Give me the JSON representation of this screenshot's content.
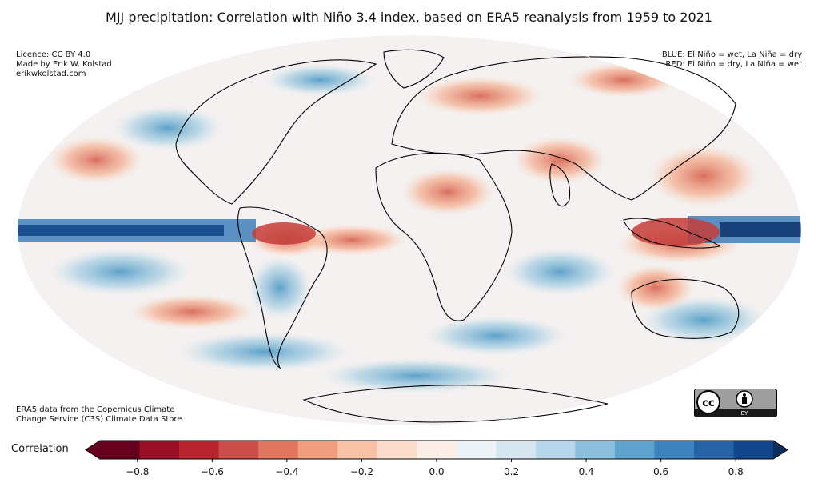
{
  "title": "MJJ precipitation: Correlation with Niño 3.4 index, based on ERA5 reanalysis from 1959 to 2021",
  "credits": {
    "line1": "Licence: CC BY 4.0",
    "line2": "Made by Erik W. Kolstad",
    "line3": "erikwkolstad.com"
  },
  "legend_text": {
    "line1": "BLUE: El Niño = wet, La Niña = dry",
    "line2": "RED: El Niño = dry, La Niña = wet"
  },
  "source": {
    "line1": "ERA5 data from the Copernicus Climate",
    "line2": "Change Service (C3S) Climate Data Store"
  },
  "license_badge": {
    "cc": "cc",
    "by": "BY"
  },
  "colorbar": {
    "label": "Correlation",
    "ticks": [
      "−0.8",
      "−0.6",
      "−0.4",
      "−0.2",
      "0.0",
      "0.2",
      "0.4",
      "0.6",
      "0.8"
    ],
    "tick_values": [
      -0.8,
      -0.6,
      -0.4,
      -0.2,
      0.0,
      0.2,
      0.4,
      0.6,
      0.8
    ],
    "min": -0.9,
    "max": 0.9,
    "colors": [
      "#67001f",
      "#9a0f25",
      "#b82330",
      "#cc4c4a",
      "#e07660",
      "#f09c7e",
      "#f8c1a6",
      "#fbdcca",
      "#fbeee7",
      "#edf2f7",
      "#d6e6f1",
      "#b7d6ea",
      "#8cbfde",
      "#5da2cd",
      "#3c82bd",
      "#2764a7",
      "#11468a"
    ],
    "over_color": "#0b2d5b",
    "under_color": "#67001f"
  }
}
